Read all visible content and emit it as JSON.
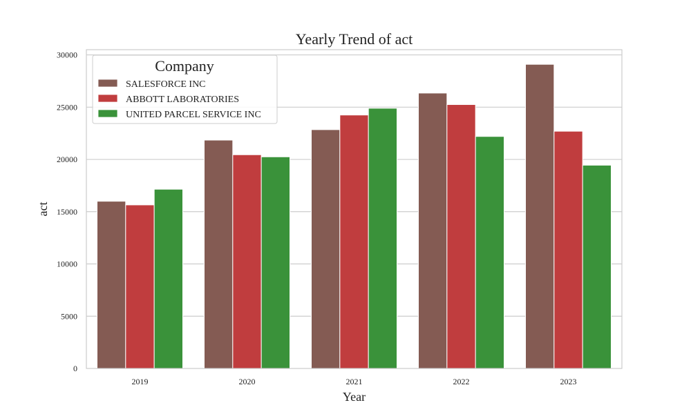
{
  "chart_data": {
    "type": "bar",
    "title": "Yearly Trend of act",
    "xlabel": "Year",
    "ylabel": "act",
    "categories": [
      "2019",
      "2020",
      "2021",
      "2022",
      "2023"
    ],
    "ylim": [
      0,
      30500
    ],
    "yticks": [
      0,
      5000,
      10000,
      15000,
      20000,
      25000,
      30000
    ],
    "grid": true,
    "legend": {
      "title": "Company",
      "position": "top-left"
    },
    "series": [
      {
        "name": "SALESFORCE INC",
        "color": "#845B53",
        "values": [
          16000,
          21850,
          22850,
          26350,
          29100
        ]
      },
      {
        "name": "ABBOTT LABORATORIES",
        "color": "#C03D3E",
        "values": [
          15650,
          20450,
          24250,
          25250,
          22700
        ]
      },
      {
        "name": "UNITED PARCEL SERVICE INC",
        "color": "#3A923A",
        "values": [
          17150,
          20250,
          24900,
          22200,
          19450
        ]
      }
    ]
  }
}
